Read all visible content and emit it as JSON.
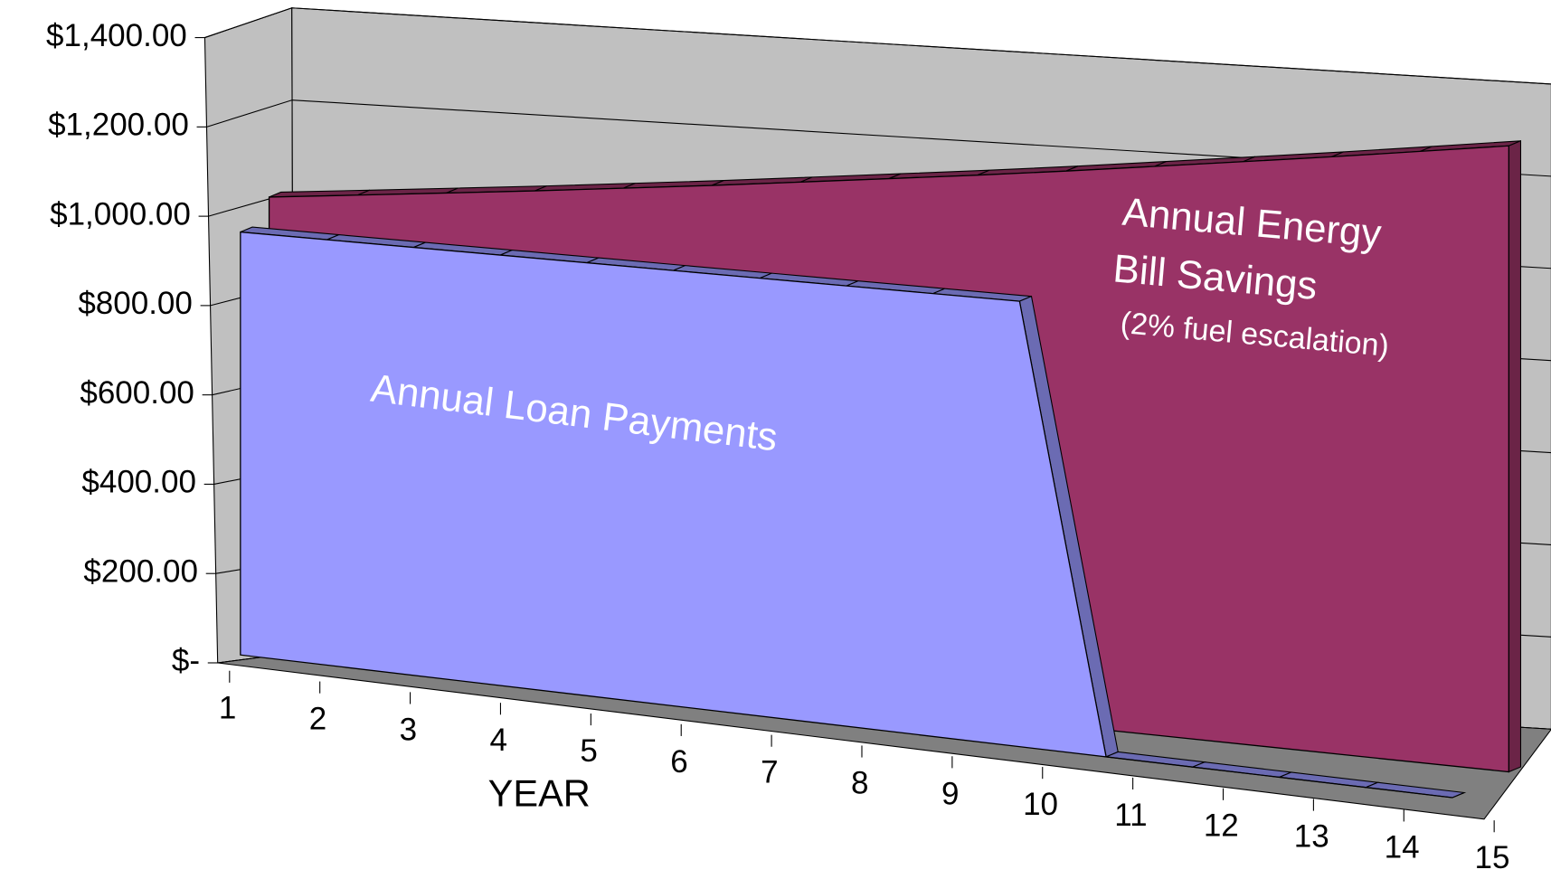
{
  "chart_data": {
    "type": "area3d",
    "x_axis_label": "YEAR",
    "categories": [
      "1",
      "2",
      "3",
      "4",
      "5",
      "6",
      "7",
      "8",
      "9",
      "10",
      "11",
      "12",
      "13",
      "14",
      "15"
    ],
    "series": [
      {
        "name": "Annual Energy Bill Savings",
        "color": "#993366",
        "values": [
          980,
          1000,
          1020,
          1040,
          1061,
          1082,
          1104,
          1126,
          1148,
          1171,
          1195,
          1219,
          1243,
          1268,
          1293
        ]
      },
      {
        "name": "Annual Loan Payments",
        "color": "#9999ff",
        "values": [
          900,
          900,
          900,
          900,
          900,
          900,
          900,
          900,
          900,
          900,
          0,
          0,
          0,
          0,
          0
        ]
      }
    ],
    "annotations": [
      "Annual Loan Payments",
      "Annual Energy",
      "Bill Savings",
      "(2% fuel escalation)"
    ],
    "ylim": [
      0,
      1400
    ],
    "yticks": [
      {
        "value": 0,
        "label": "$-"
      },
      {
        "value": 200,
        "label": "$200.00"
      },
      {
        "value": 400,
        "label": "$400.00"
      },
      {
        "value": 600,
        "label": "$600.00"
      },
      {
        "value": 800,
        "label": "$800.00"
      },
      {
        "value": 1000,
        "label": "$1,000.00"
      },
      {
        "value": 1200,
        "label": "$1,200.00"
      },
      {
        "value": 1400,
        "label": "$1,400.00"
      }
    ],
    "grid": true
  }
}
